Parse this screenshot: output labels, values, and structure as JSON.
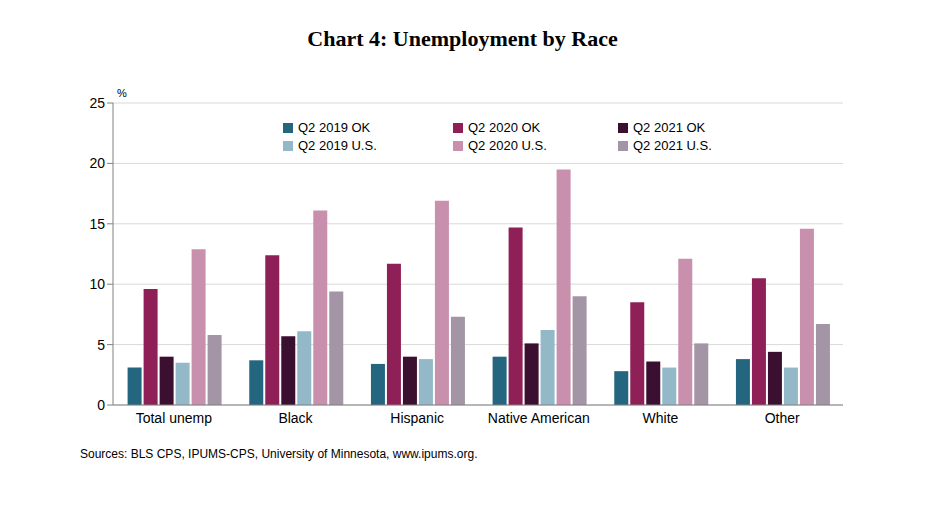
{
  "chart_data": {
    "type": "bar",
    "title": "Chart 4: Unemployment by Race",
    "y_label": "%",
    "source": "Sources: BLS CPS, IPUMS-CPS, University of Minnesota, www.ipums.org.",
    "categories": [
      "Total unemp",
      "Black",
      "Hispanic",
      "Native American",
      "White",
      "Other"
    ],
    "series": [
      {
        "name": "Q2 2019 OK",
        "color": "#24657f",
        "values": [
          3.1,
          3.7,
          3.4,
          4.0,
          2.8,
          3.8
        ]
      },
      {
        "name": "Q2 2020 OK",
        "color": "#8e1f57",
        "values": [
          9.6,
          12.4,
          11.7,
          14.7,
          8.5,
          10.5
        ]
      },
      {
        "name": "Q2 2021 OK",
        "color": "#3a0f2f",
        "values": [
          4.0,
          5.7,
          4.0,
          5.1,
          3.6,
          4.4
        ]
      },
      {
        "name": "Q2 2019 U.S.",
        "color": "#93b8c8",
        "values": [
          3.5,
          6.1,
          3.8,
          6.2,
          3.1,
          3.1
        ]
      },
      {
        "name": "Q2 2020 U.S.",
        "color": "#c990ad",
        "values": [
          12.9,
          16.1,
          16.9,
          19.5,
          12.1,
          14.6
        ]
      },
      {
        "name": "Q2 2021 U.S.",
        "color": "#a394a6",
        "values": [
          5.8,
          9.4,
          7.3,
          9.0,
          5.1,
          6.7
        ]
      }
    ],
    "ylim": [
      0,
      25
    ],
    "yticks": [
      0,
      5,
      10,
      15,
      20,
      25
    ],
    "grid": true,
    "legend": "top"
  }
}
